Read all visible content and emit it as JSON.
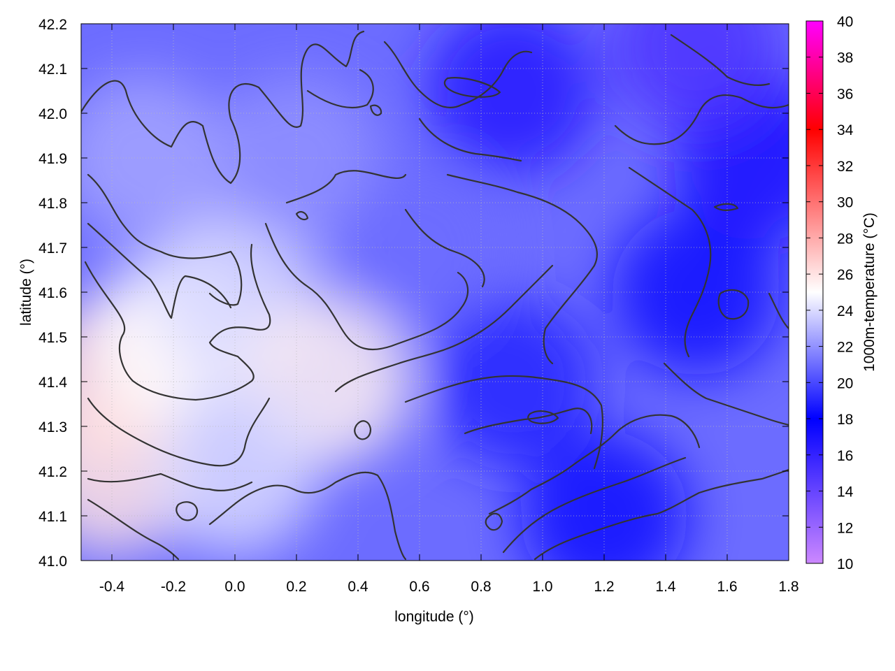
{
  "chart_data": {
    "type": "heatmap",
    "title": "",
    "xlabel": "longitude (°)",
    "ylabel": "latitude (°)",
    "colorbar_label": "1000m-temperature (°C)",
    "xlim": [
      -0.5,
      1.8
    ],
    "ylim": [
      41.0,
      42.2
    ],
    "x_ticks": [
      -0.4,
      -0.2,
      0.0,
      0.2,
      0.4,
      0.6,
      0.8,
      1.0,
      1.2,
      1.4,
      1.6,
      1.8
    ],
    "x_tick_labels": [
      "-0.4",
      "-0.2",
      "0.0",
      "0.2",
      "0.4",
      "0.6",
      "0.8",
      "1.0",
      "1.2",
      "1.4",
      "1.6",
      "1.8"
    ],
    "y_ticks": [
      41.0,
      41.1,
      41.2,
      41.3,
      41.4,
      41.5,
      41.6,
      41.7,
      41.8,
      41.9,
      42.0,
      42.1,
      42.2
    ],
    "y_tick_labels": [
      "41.0",
      "41.1",
      "41.2",
      "41.3",
      "41.4",
      "41.5",
      "41.6",
      "41.7",
      "41.8",
      "41.9",
      "42.0",
      "42.1",
      "42.2"
    ],
    "colorbar": {
      "range": [
        10,
        40
      ],
      "ticks": [
        10,
        12,
        14,
        16,
        18,
        20,
        22,
        24,
        26,
        28,
        30,
        32,
        34,
        36,
        38,
        40
      ],
      "tick_labels": [
        "10",
        "12",
        "14",
        "16",
        "18",
        "20",
        "22",
        "24",
        "26",
        "28",
        "30",
        "32",
        "34",
        "36",
        "38",
        "40"
      ],
      "stops": [
        {
          "value": 10,
          "color": "#cc88ff"
        },
        {
          "value": 18,
          "color": "#0000ff"
        },
        {
          "value": 25,
          "color": "#ffffff"
        },
        {
          "value": 34,
          "color": "#ff0000"
        },
        {
          "value": 40,
          "color": "#ff00ff"
        }
      ]
    },
    "grid": true,
    "contours": "black terrain contour lines overlaid",
    "field": [
      {
        "lon": -0.4,
        "lat": 41.4,
        "value": 26.5
      },
      {
        "lon": -0.4,
        "lat": 41.2,
        "value": 26.0
      },
      {
        "lon": -0.2,
        "lat": 41.5,
        "value": 25.0
      },
      {
        "lon": 0.0,
        "lat": 41.6,
        "value": 24.0
      },
      {
        "lon": 0.3,
        "lat": 41.4,
        "value": 25.5
      },
      {
        "lon": 0.0,
        "lat": 41.2,
        "value": 24.0
      },
      {
        "lon": 0.2,
        "lat": 41.9,
        "value": 22.0
      },
      {
        "lon": -0.3,
        "lat": 41.9,
        "value": 22.5
      },
      {
        "lon": 0.6,
        "lat": 41.7,
        "value": 21.0
      },
      {
        "lon": 0.9,
        "lat": 41.4,
        "value": 19.0
      },
      {
        "lon": 1.2,
        "lat": 41.1,
        "value": 18.5
      },
      {
        "lon": 1.5,
        "lat": 41.6,
        "value": 17.5
      },
      {
        "lon": 1.7,
        "lat": 41.9,
        "value": 17.0
      },
      {
        "lon": 0.9,
        "lat": 42.05,
        "value": 16.5
      },
      {
        "lon": 1.5,
        "lat": 42.15,
        "value": 15.0
      }
    ]
  }
}
